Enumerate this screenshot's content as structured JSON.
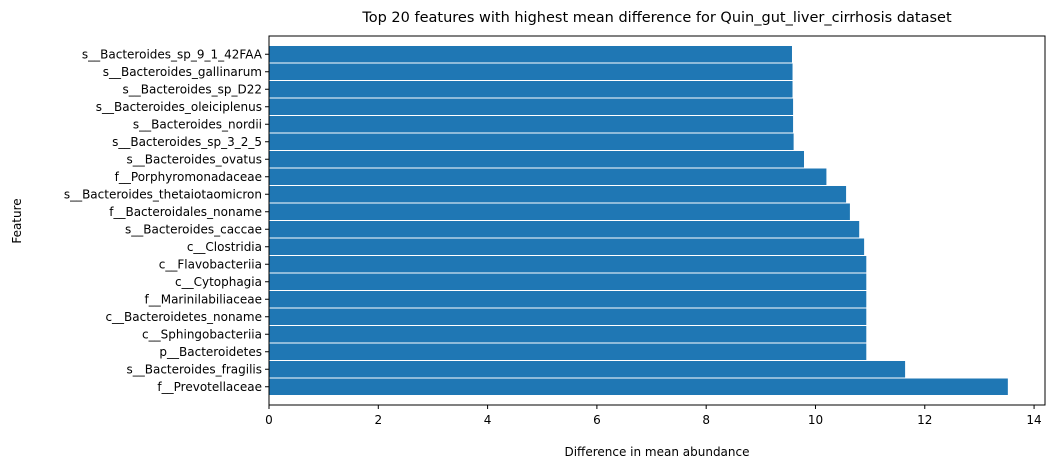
{
  "chart_data": {
    "type": "bar",
    "orientation": "horizontal",
    "title": "Top 20 features with highest mean difference for Quin_gut_liver_cirrhosis dataset",
    "xlabel": "Difference in mean abundance",
    "ylabel": "Feature",
    "xlim": [
      0,
      14.2
    ],
    "xticks": [
      0,
      2,
      4,
      6,
      8,
      10,
      12,
      14
    ],
    "grid": false,
    "bar_color": "#1f77b4",
    "categories": [
      "f__Prevotellaceae",
      "s__Bacteroides_fragilis",
      "p__Bacteroidetes",
      "c__Sphingobacteriia",
      "c__Bacteroidetes_noname",
      "f__Marinilabiliaceae",
      "c__Cytophagia",
      "c__Flavobacteriia",
      "c__Clostridia",
      "s__Bacteroides_caccae",
      "f__Bacteroidales_noname",
      "s__Bacteroides_thetaiotaomicron",
      "f__Porphyromonadaceae",
      "s__Bacteroides_ovatus",
      "s__Bacteroides_sp_3_2_5",
      "s__Bacteroides_nordii",
      "s__Bacteroides_oleiciplenus",
      "s__Bacteroides_sp_D22",
      "s__Bacteroides_gallinarum",
      "s__Bacteroides_sp_9_1_42FAA"
    ],
    "values": [
      13.52,
      11.64,
      10.93,
      10.93,
      10.93,
      10.93,
      10.93,
      10.93,
      10.89,
      10.8,
      10.63,
      10.56,
      10.2,
      9.79,
      9.6,
      9.59,
      9.59,
      9.58,
      9.58,
      9.57
    ]
  }
}
